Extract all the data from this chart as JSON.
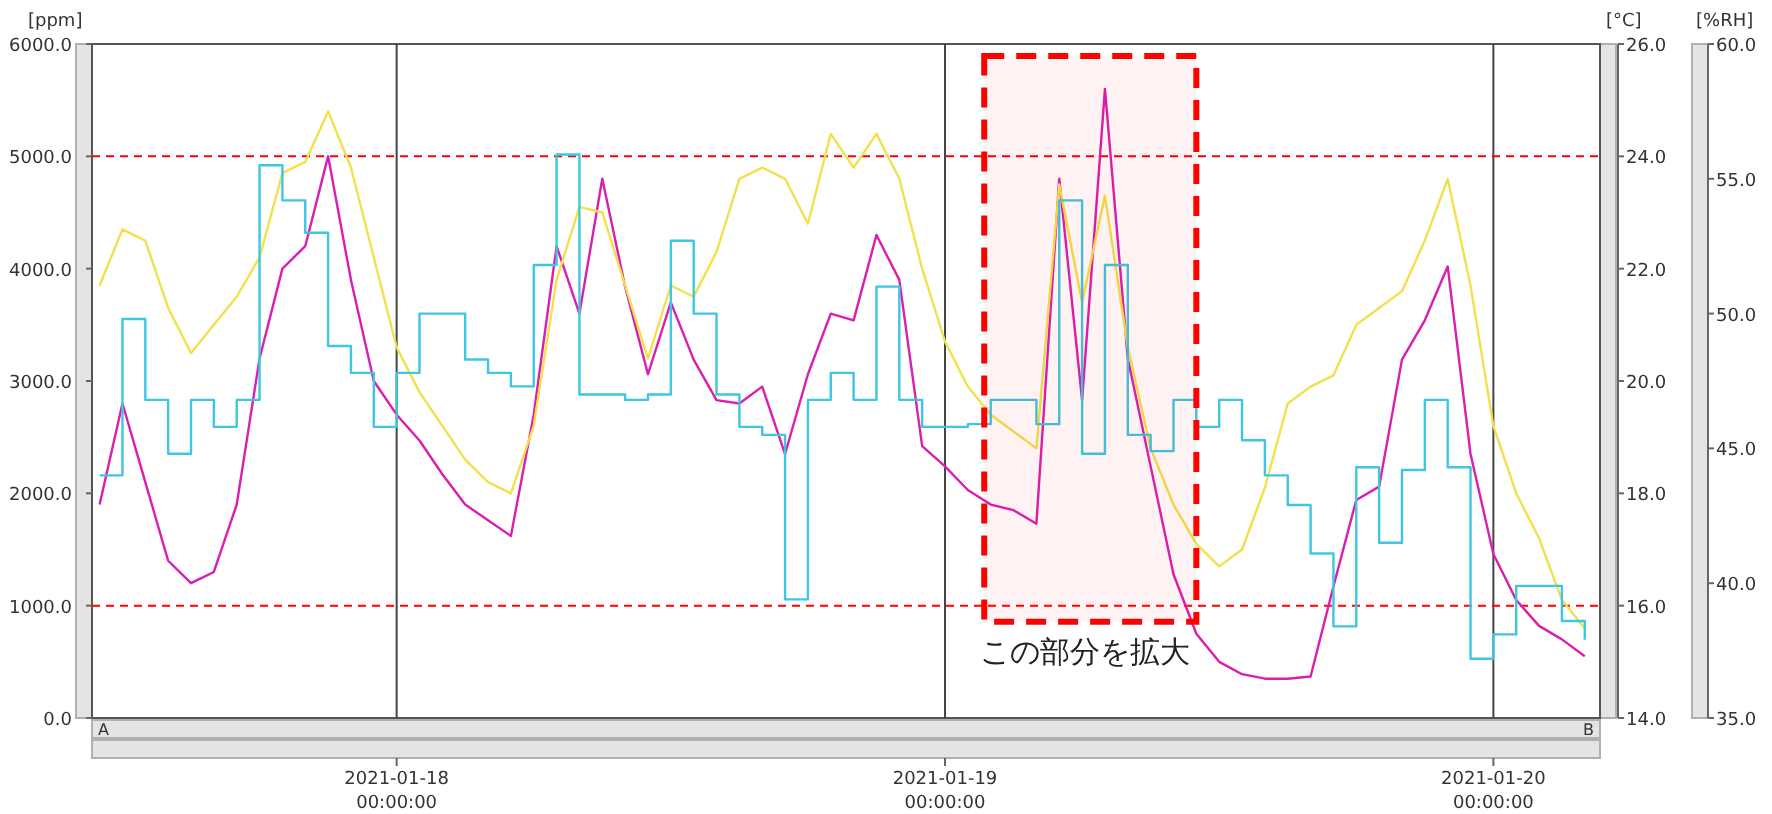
{
  "chart_data": {
    "type": "line",
    "ylabel": "[ppm]",
    "y2label": "[°C]",
    "y3label": "[%RH]",
    "x": [
      "2021-01-17T11:00",
      "2021-01-17T12:00",
      "2021-01-17T13:00",
      "2021-01-17T14:00",
      "2021-01-17T15:00",
      "2021-01-17T16:00",
      "2021-01-17T17:00",
      "2021-01-17T18:00",
      "2021-01-17T19:00",
      "2021-01-17T20:00",
      "2021-01-17T21:00",
      "2021-01-17T22:00",
      "2021-01-17T23:00",
      "2021-01-18T00:00",
      "2021-01-18T01:00",
      "2021-01-18T02:00",
      "2021-01-18T03:00",
      "2021-01-18T04:00",
      "2021-01-18T05:00",
      "2021-01-18T06:00",
      "2021-01-18T07:00",
      "2021-01-18T08:00",
      "2021-01-18T09:00",
      "2021-01-18T10:00",
      "2021-01-18T11:00",
      "2021-01-18T12:00",
      "2021-01-18T13:00",
      "2021-01-18T14:00",
      "2021-01-18T15:00",
      "2021-01-18T16:00",
      "2021-01-18T17:00",
      "2021-01-18T18:00",
      "2021-01-18T19:00",
      "2021-01-18T20:00",
      "2021-01-18T21:00",
      "2021-01-18T22:00",
      "2021-01-18T23:00",
      "2021-01-19T00:00",
      "2021-01-19T01:00",
      "2021-01-19T02:00",
      "2021-01-19T03:00",
      "2021-01-19T04:00",
      "2021-01-19T05:00",
      "2021-01-19T06:00",
      "2021-01-19T07:00",
      "2021-01-19T08:00",
      "2021-01-19T09:00",
      "2021-01-19T10:00",
      "2021-01-19T11:00",
      "2021-01-19T12:00",
      "2021-01-19T13:00",
      "2021-01-19T14:00",
      "2021-01-19T15:00",
      "2021-01-19T16:00",
      "2021-01-19T17:00",
      "2021-01-19T18:00",
      "2021-01-19T19:00",
      "2021-01-19T20:00",
      "2021-01-19T21:00",
      "2021-01-19T22:00",
      "2021-01-19T23:00",
      "2021-01-20T00:00",
      "2021-01-20T01:00",
      "2021-01-20T02:00",
      "2021-01-20T03:00",
      "2021-01-20T04:00"
    ],
    "series": [
      {
        "color": "#d81fb0",
        "values": [
          1900,
          2800,
          2100,
          1400,
          1200,
          1300,
          1900,
          3200,
          4000,
          4200,
          5000,
          3900,
          3000,
          2700,
          2470,
          2170,
          1900,
          1760,
          1620,
          2700,
          4200,
          3600,
          4800,
          3840,
          3060,
          3700,
          3190,
          2830,
          2800,
          2950,
          2350,
          3060,
          3600,
          3540,
          4300,
          3900,
          2420,
          2240,
          2030,
          1900,
          1850,
          1730,
          4800,
          2830,
          5600,
          3200,
          2240,
          1280,
          750,
          500,
          390,
          350,
          350,
          370,
          1170,
          1940,
          2060,
          3190,
          3540,
          4020,
          2350,
          1460,
          1050,
          820,
          700,
          550
        ]
      },
      {
        "color": "#f2e04c",
        "axis": "y2",
        "values": [
          21.7,
          22.7,
          22.5,
          21.3,
          20.5,
          21.0,
          21.5,
          22.2,
          23.7,
          23.9,
          24.8,
          23.8,
          22.2,
          20.6,
          19.8,
          19.2,
          18.6,
          18.2,
          18.0,
          19.2,
          21.8,
          23.1,
          23.0,
          21.7,
          20.4,
          21.7,
          21.5,
          22.3,
          23.6,
          23.8,
          23.6,
          22.8,
          24.4,
          23.8,
          24.4,
          23.6,
          22.0,
          20.7,
          19.9,
          19.4,
          19.1,
          18.8,
          23.5,
          21.4,
          23.3,
          20.6,
          18.8,
          17.8,
          17.1,
          16.7,
          17.0,
          18.1,
          19.6,
          19.9,
          20.1,
          21.0,
          21.3,
          21.6,
          22.5,
          23.6,
          21.7,
          19.2,
          18.0,
          17.2,
          16.1,
          15.6
        ]
      },
      {
        "type": "step",
        "color": "#3ec6e2",
        "axis": "y3",
        "values": [
          44.0,
          49.8,
          46.8,
          44.8,
          46.8,
          45.8,
          46.8,
          55.5,
          54.2,
          53.0,
          48.8,
          47.8,
          45.8,
          47.8,
          50.0,
          50.0,
          48.3,
          47.8,
          47.3,
          51.8,
          55.9,
          47.0,
          47.0,
          46.8,
          47.0,
          52.7,
          50.0,
          47.0,
          45.8,
          45.5,
          39.4,
          46.8,
          47.8,
          46.8,
          51.0,
          46.8,
          45.8,
          45.8,
          45.9,
          46.8,
          46.8,
          45.9,
          54.2,
          44.8,
          51.8,
          45.5,
          44.9,
          46.8,
          45.8,
          46.8,
          45.3,
          44.0,
          42.9,
          41.1,
          38.4,
          44.3,
          41.5,
          44.2,
          46.8,
          44.3,
          37.2,
          38.1,
          39.9,
          39.9,
          38.6,
          37.9
        ]
      }
    ],
    "xlim": [
      "2021-01-17T10:40",
      "2021-01-20T04:40"
    ],
    "xticks": [
      {
        "value": "2021-01-18",
        "label": "2021-01-18 00:00:00"
      },
      {
        "value": "2021-01-19",
        "label": "2021-01-19 00:00:00"
      },
      {
        "value": "2021-01-20",
        "label": "2021-01-20 00:00:00"
      }
    ],
    "ylim": [
      0,
      6000
    ],
    "yticks": [
      {
        "value": 0,
        "label": "0.0"
      },
      {
        "value": 1000,
        "label": "1000.0"
      },
      {
        "value": 2000,
        "label": "2000.0"
      },
      {
        "value": 3000,
        "label": "3000.0"
      },
      {
        "value": 4000,
        "label": "4000.0"
      },
      {
        "value": 5000,
        "label": "5000.0"
      },
      {
        "value": 6000,
        "label": "6000.0"
      }
    ],
    "y2lim": [
      14,
      26
    ],
    "y2ticks": [
      {
        "value": 14,
        "label": "14.0"
      },
      {
        "value": 16,
        "label": "16.0"
      },
      {
        "value": 18,
        "label": "18.0"
      },
      {
        "value": 20,
        "label": "20.0"
      },
      {
        "value": 22,
        "label": "22.0"
      },
      {
        "value": 24,
        "label": "24.0"
      },
      {
        "value": 26,
        "label": "26.0"
      }
    ],
    "y3lim": [
      35,
      60
    ],
    "y3ticks": [
      {
        "value": 35,
        "label": "35.0"
      },
      {
        "value": 40,
        "label": "40.0"
      },
      {
        "value": 45,
        "label": "45.0"
      },
      {
        "value": 50,
        "label": "50.0"
      },
      {
        "value": 55,
        "label": "55.0"
      },
      {
        "value": 60,
        "label": "60.0"
      }
    ],
    "grid": "x",
    "ref_lines": [
      {
        "axis": "y",
        "value": 5000,
        "color": "#ff0000",
        "line_style": "dashed"
      },
      {
        "axis": "y",
        "value": 1000,
        "color": "#ff0000",
        "line_style": "dashed"
      }
    ],
    "bands": [
      {
        "axis": "x",
        "from": "2021-01-19T01:43",
        "to": "2021-01-19T11:00",
        "label": "この部分を拡大",
        "color": "#ff0000"
      }
    ],
    "annotations": [
      "A",
      "B"
    ]
  }
}
